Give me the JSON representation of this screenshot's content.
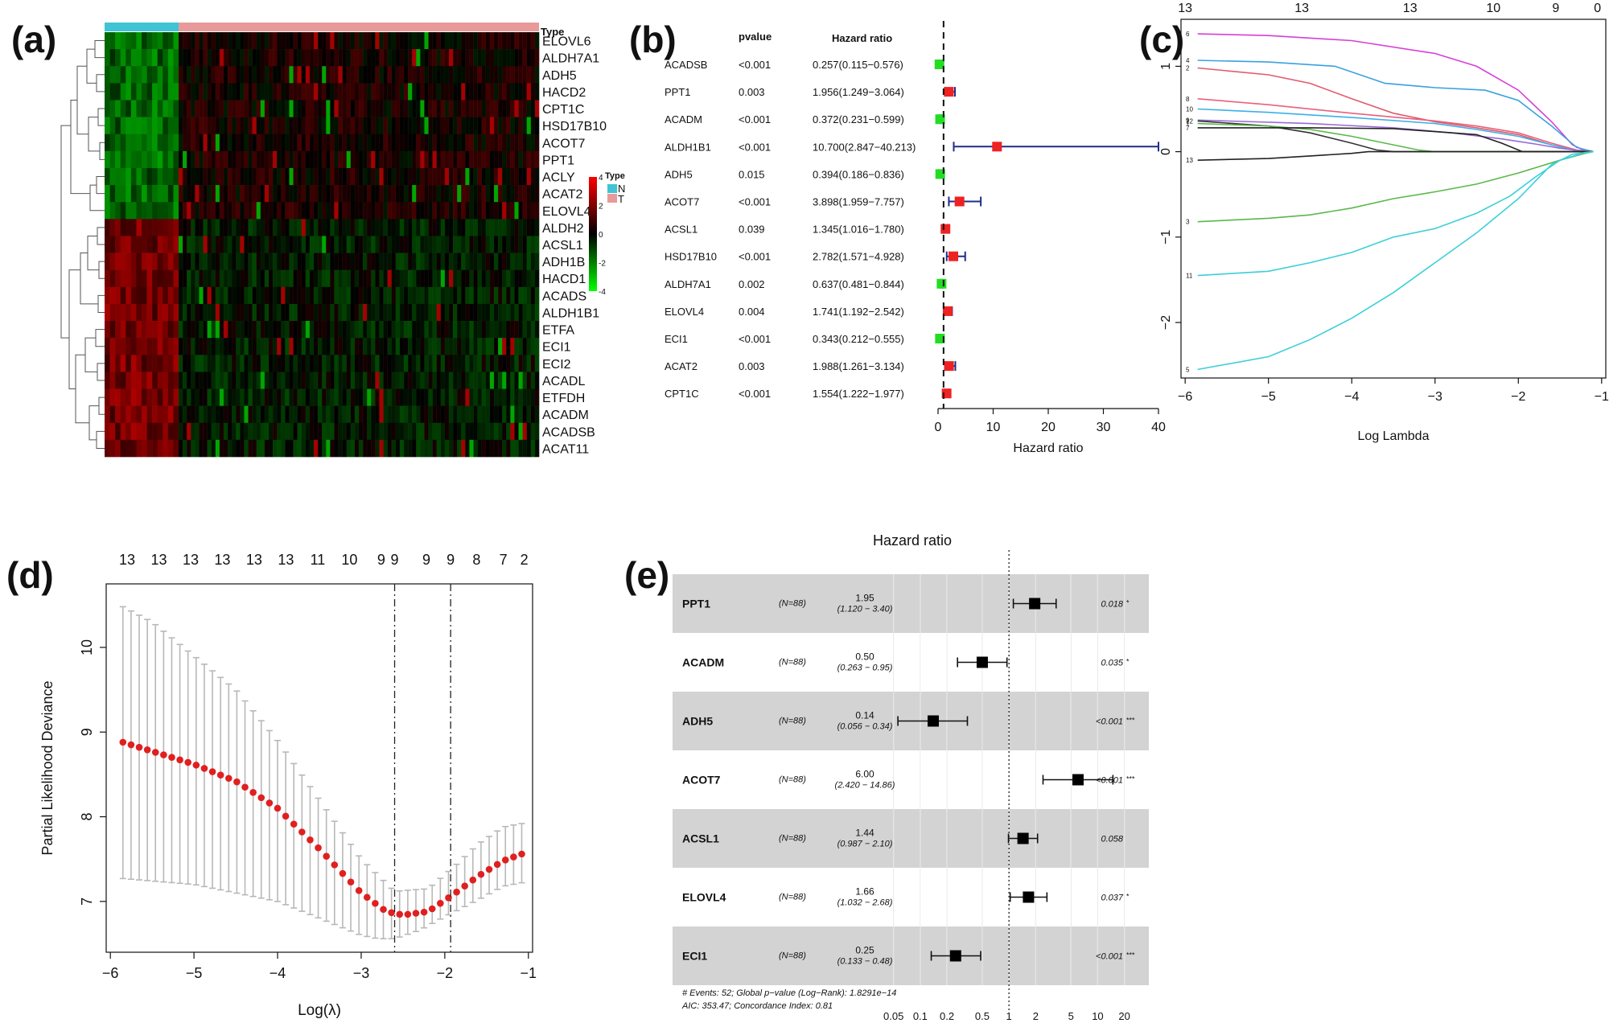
{
  "panel_labels": [
    "(a)",
    "(b)",
    "(c)",
    "(d)",
    "(e)"
  ],
  "chart_data": [
    {
      "panel": "(a)",
      "type": "heatmap",
      "annotation_title": "Type",
      "groups": [
        {
          "name": "N",
          "color": "#40c4d4"
        },
        {
          "name": "T",
          "color": "#e89a9a"
        }
      ],
      "colorbar_ticks": [
        "4",
        "2",
        "0",
        "-2",
        "-4"
      ],
      "color_low": "#00ff00",
      "color_mid": "#000000",
      "color_high": "#ff0000",
      "rows": [
        "ELOVL6",
        "ALDH7A1",
        "ADH5",
        "HACD2",
        "CPT1C",
        "HSD17B10",
        "ACOT7",
        "PPT1",
        "ACLY",
        "ACAT2",
        "ELOVL4",
        "ALDH2",
        "ACSL1",
        "ADH1B",
        "HACD1",
        "ACADS",
        "ALDH1B1",
        "ETFA",
        "ECI1",
        "ECI2",
        "ACADL",
        "ETFDH",
        "ACADM",
        "ACADSB",
        "ACAT11"
      ],
      "row_direction_in_normal": [
        "low",
        "low",
        "low",
        "low",
        "low",
        "low",
        "low",
        "low",
        "low",
        "low",
        "low",
        "high",
        "high",
        "high",
        "high",
        "high",
        "high",
        "high",
        "high",
        "high",
        "high",
        "high",
        "high",
        "high",
        "high"
      ]
    },
    {
      "panel": "(b)",
      "type": "forest",
      "col_headers": {
        "pvalue": "pvalue",
        "hr": "Hazard ratio"
      },
      "xlabel": "Hazard ratio",
      "xticks": [
        0,
        10,
        20,
        30,
        40
      ],
      "xlim": [
        0,
        40
      ],
      "reference_line": 1,
      "rows": [
        {
          "gene": "ACADSB",
          "p": "<0.001",
          "hr_text": "0.257(0.115−0.576)",
          "hr": 0.257,
          "lo": 0.115,
          "hi": 0.576
        },
        {
          "gene": "PPT1",
          "p": "0.003",
          "hr_text": "1.956(1.249−3.064)",
          "hr": 1.956,
          "lo": 1.249,
          "hi": 3.064
        },
        {
          "gene": "ACADM",
          "p": "<0.001",
          "hr_text": "0.372(0.231−0.599)",
          "hr": 0.372,
          "lo": 0.231,
          "hi": 0.599
        },
        {
          "gene": "ALDH1B1",
          "p": "<0.001",
          "hr_text": "10.700(2.847−40.213)",
          "hr": 10.7,
          "lo": 2.847,
          "hi": 40.213
        },
        {
          "gene": "ADH5",
          "p": "0.015",
          "hr_text": "0.394(0.186−0.836)",
          "hr": 0.394,
          "lo": 0.186,
          "hi": 0.836
        },
        {
          "gene": "ACOT7",
          "p": "<0.001",
          "hr_text": "3.898(1.959−7.757)",
          "hr": 3.898,
          "lo": 1.959,
          "hi": 7.757
        },
        {
          "gene": "ACSL1",
          "p": "0.039",
          "hr_text": "1.345(1.016−1.780)",
          "hr": 1.345,
          "lo": 1.016,
          "hi": 1.78
        },
        {
          "gene": "HSD17B10",
          "p": "<0.001",
          "hr_text": "2.782(1.571−4.928)",
          "hr": 2.782,
          "lo": 1.571,
          "hi": 4.928
        },
        {
          "gene": "ALDH7A1",
          "p": "0.002",
          "hr_text": "0.637(0.481−0.844)",
          "hr": 0.637,
          "lo": 0.481,
          "hi": 0.844
        },
        {
          "gene": "ELOVL4",
          "p": "0.004",
          "hr_text": "1.741(1.192−2.542)",
          "hr": 1.741,
          "lo": 1.192,
          "hi": 2.542
        },
        {
          "gene": "ECI1",
          "p": "<0.001",
          "hr_text": "0.343(0.212−0.555)",
          "hr": 0.343,
          "lo": 0.212,
          "hi": 0.555
        },
        {
          "gene": "ACAT2",
          "p": "0.003",
          "hr_text": "1.988(1.261−3.134)",
          "hr": 1.988,
          "lo": 1.261,
          "hi": 3.134
        },
        {
          "gene": "CPT1C",
          "p": "<0.001",
          "hr_text": "1.554(1.222−1.977)",
          "hr": 1.554,
          "lo": 1.222,
          "hi": 1.977
        }
      ],
      "colors": {
        "protective": "#22dd22",
        "risk": "#ee2222",
        "ci": "#1f2d8a"
      }
    },
    {
      "panel": "(c)",
      "type": "line",
      "xlabel": "Log Lambda",
      "ylabel": "",
      "xlim": [
        -6.05,
        -0.95
      ],
      "ylim": [
        -2.65,
        1.55
      ],
      "xticks": [
        -6,
        -5,
        -4,
        -3,
        -2,
        -1
      ],
      "yticks": [
        -2,
        -1,
        0,
        1
      ],
      "top_axis": {
        "x": [
          -6,
          -5,
          -4,
          -3,
          -2,
          -1.5,
          -1.05
        ],
        "labels": [
          "13",
          "13",
          "13",
          "10",
          "9",
          "0",
          ""
        ],
        "positions": [
          -6,
          -4.6,
          -3.3,
          -2.3,
          -1.55,
          -1.05
        ],
        "shown": [
          "13",
          "13",
          "13",
          "10",
          "9",
          "0"
        ]
      },
      "series": [
        {
          "name": "6",
          "color": "#d63fd6",
          "x": [
            -5.85,
            -5,
            -4,
            -3,
            -2.5,
            -2,
            -1.6,
            -1.35,
            -1.2,
            -1.1
          ],
          "y": [
            1.38,
            1.36,
            1.3,
            1.15,
            1.0,
            0.72,
            0.35,
            0.08,
            0.01,
            0
          ]
        },
        {
          "name": "4",
          "color": "#3aa0e0",
          "x": [
            -5.85,
            -5,
            -4.2,
            -3.6,
            -3,
            -2.4,
            -2,
            -1.6,
            -1.3,
            -1.1
          ],
          "y": [
            1.07,
            1.05,
            1.0,
            0.8,
            0.75,
            0.72,
            0.6,
            0.3,
            0.05,
            0
          ]
        },
        {
          "name": "2",
          "color": "#e05a6e",
          "x": [
            -5.85,
            -5,
            -4.5,
            -4,
            -3.5,
            -3,
            -2.5,
            -2,
            -1.6,
            -1.3,
            -1.1
          ],
          "y": [
            0.98,
            0.9,
            0.8,
            0.62,
            0.45,
            0.35,
            0.28,
            0.2,
            0.08,
            0.01,
            0
          ]
        },
        {
          "name": "8",
          "color": "#e8607a",
          "x": [
            -5.85,
            -5,
            -4,
            -3,
            -2.5,
            -2,
            -1.6,
            -1.3,
            -1.1
          ],
          "y": [
            0.62,
            0.55,
            0.45,
            0.36,
            0.3,
            0.22,
            0.1,
            0.02,
            0
          ]
        },
        {
          "name": "10",
          "color": "#3ab0e8",
          "x": [
            -5.85,
            -5,
            -4,
            -3,
            -2.5,
            -2,
            -1.6,
            -1.3,
            -1.1
          ],
          "y": [
            0.5,
            0.46,
            0.4,
            0.33,
            0.26,
            0.18,
            0.08,
            0.01,
            0
          ]
        },
        {
          "name": "9",
          "color": "#9a6ad6",
          "x": [
            -5.85,
            -4.5,
            -3.5,
            -2.8,
            -2.2,
            -1.8,
            -1.5,
            -1.25,
            -1.1
          ],
          "y": [
            0.37,
            0.33,
            0.28,
            0.22,
            0.15,
            0.09,
            0.04,
            0.01,
            0
          ]
        },
        {
          "name": "12",
          "color": "#333333",
          "x": [
            -5.85,
            -5,
            -4.5,
            -4,
            -3.7,
            -3.5,
            -3.3,
            -1.1
          ],
          "y": [
            0.36,
            0.3,
            0.22,
            0.1,
            0.02,
            0,
            0,
            0
          ]
        },
        {
          "name": "1",
          "color": "#5ab84a",
          "x": [
            -5.85,
            -5,
            -4.5,
            -4,
            -3.5,
            -3.2,
            -3.0,
            -1.1
          ],
          "y": [
            0.33,
            0.3,
            0.26,
            0.18,
            0.08,
            0.02,
            0,
            0
          ]
        },
        {
          "name": "7",
          "color": "#222222",
          "x": [
            -5.85,
            -4.5,
            -3.5,
            -2.5,
            -2.2,
            -1.95,
            -1.1
          ],
          "y": [
            0.28,
            0.28,
            0.27,
            0.2,
            0.1,
            0,
            0
          ]
        },
        {
          "name": "13",
          "color": "#222222",
          "x": [
            -5.85,
            -5,
            -4.5,
            -4.0,
            -3.8,
            -1.1
          ],
          "y": [
            -0.1,
            -0.08,
            -0.05,
            -0.02,
            0,
            0
          ]
        },
        {
          "name": "3",
          "color": "#5ab84a",
          "x": [
            -5.85,
            -5,
            -4.5,
            -4,
            -3.5,
            -3,
            -2.5,
            -2,
            -1.5,
            -1.2,
            -1.1
          ],
          "y": [
            -0.82,
            -0.78,
            -0.74,
            -0.66,
            -0.55,
            -0.47,
            -0.38,
            -0.25,
            -0.1,
            -0.02,
            0
          ]
        },
        {
          "name": "11",
          "color": "#3ad0d8",
          "x": [
            -5.85,
            -5,
            -4.5,
            -4,
            -3.5,
            -3,
            -2.5,
            -2.1,
            -1.8,
            -1.5,
            -1.2,
            -1.1
          ],
          "y": [
            -1.45,
            -1.4,
            -1.3,
            -1.18,
            -1.0,
            -0.9,
            -0.72,
            -0.52,
            -0.3,
            -0.1,
            -0.01,
            0
          ]
        },
        {
          "name": "5",
          "color": "#3ad0d8",
          "x": [
            -5.85,
            -5,
            -4.5,
            -4,
            -3.5,
            -3,
            -2.5,
            -2,
            -1.8,
            -1.6,
            -1.35,
            -1.1
          ],
          "y": [
            -2.55,
            -2.4,
            -2.2,
            -1.95,
            -1.65,
            -1.3,
            -0.95,
            -0.55,
            -0.35,
            -0.15,
            -0.03,
            0
          ]
        }
      ]
    },
    {
      "panel": "(d)",
      "type": "scatter",
      "xlabel": "Log(λ)",
      "ylabel": "Partial Likelihood Deviance",
      "xlim": [
        -6.05,
        -0.95
      ],
      "ylim": [
        6.4,
        10.75
      ],
      "xticks": [
        -6,
        -5,
        -4,
        -3,
        -2,
        -1
      ],
      "yticks": [
        7,
        8,
        9,
        10
      ],
      "top_labels": [
        "13",
        "13",
        "13",
        "13",
        "13",
        "13",
        "11",
        "10",
        "9",
        "9",
        "9",
        "9",
        "8",
        "7",
        "2"
      ],
      "top_label_x": [
        -5.8,
        -5.42,
        -5.04,
        -4.66,
        -4.28,
        -3.9,
        -3.52,
        -3.14,
        -2.76,
        -2.6,
        -2.22,
        -1.93,
        -1.62,
        -1.3,
        -1.05
      ],
      "vlines": [
        -2.6,
        -1.93
      ],
      "x_start": -5.85,
      "x_end": -1.08,
      "n_points": 50,
      "deviance_curve": {
        "x": [
          -5.85,
          -5.0,
          -4.5,
          -4.0,
          -3.5,
          -3.0,
          -2.7,
          -2.5,
          -2.2,
          -1.9,
          -1.6,
          -1.3,
          -1.08
        ],
        "y": [
          8.88,
          8.62,
          8.42,
          8.1,
          7.62,
          7.1,
          6.88,
          6.84,
          6.88,
          7.08,
          7.3,
          7.48,
          7.56
        ]
      },
      "upper_curve": {
        "x": [
          -5.85,
          -5.5,
          -5.0,
          -4.5,
          -4.0,
          -3.5,
          -3.0,
          -2.6,
          -2.2,
          -1.9,
          -1.6,
          -1.3,
          -1.08
        ],
        "y": [
          10.48,
          10.3,
          9.9,
          9.5,
          8.9,
          8.2,
          7.5,
          7.12,
          7.15,
          7.4,
          7.68,
          7.88,
          7.92
        ]
      },
      "lower_curve": {
        "x": [
          -5.85,
          -5.0,
          -4.0,
          -3.5,
          -3.0,
          -2.8,
          -2.6,
          -2.3,
          -2.0,
          -1.6,
          -1.3,
          -1.08
        ],
        "y": [
          7.27,
          7.2,
          7.0,
          6.8,
          6.6,
          6.56,
          6.56,
          6.66,
          6.82,
          7.02,
          7.18,
          7.22
        ]
      },
      "point_color": "#e02020",
      "bar_color": "#b8b8b8"
    },
    {
      "panel": "(e)",
      "type": "forest",
      "title": "Hazard ratio",
      "xscale": "log",
      "xticks": [
        0.05,
        0.1,
        0.2,
        0.5,
        1,
        2,
        5,
        10,
        20
      ],
      "xtick_labels": [
        "0.05",
        "0.1",
        "0.2",
        "0.5",
        "1",
        "2",
        "5",
        "10",
        "20"
      ],
      "xlim": [
        0.04,
        27
      ],
      "reference_line": 1,
      "rows": [
        {
          "gene": "PPT1",
          "n": "(N=88)",
          "hr_text": "1.95",
          "ci_text": "(1.120 − 3.40)",
          "p": "0.018",
          "stars": "*",
          "hr": 1.95,
          "lo": 1.12,
          "hi": 3.4
        },
        {
          "gene": "ACADM",
          "n": "(N=88)",
          "hr_text": "0.50",
          "ci_text": "(0.263 − 0.95)",
          "p": "0.035",
          "stars": "*",
          "hr": 0.5,
          "lo": 0.263,
          "hi": 0.95
        },
        {
          "gene": "ADH5",
          "n": "(N=88)",
          "hr_text": "0.14",
          "ci_text": "(0.056 − 0.34)",
          "p": "<0.001",
          "stars": "***",
          "hr": 0.14,
          "lo": 0.056,
          "hi": 0.34
        },
        {
          "gene": "ACOT7",
          "n": "(N=88)",
          "hr_text": "6.00",
          "ci_text": "(2.420 − 14.86)",
          "p": "<0.001",
          "stars": "***",
          "hr": 6.0,
          "lo": 2.42,
          "hi": 14.86
        },
        {
          "gene": "ACSL1",
          "n": "(N=88)",
          "hr_text": "1.44",
          "ci_text": "(0.987 − 2.10)",
          "p": "0.058",
          "stars": "",
          "hr": 1.44,
          "lo": 0.987,
          "hi": 2.1
        },
        {
          "gene": "ELOVL4",
          "n": "(N=88)",
          "hr_text": "1.66",
          "ci_text": "(1.032 − 2.68)",
          "p": "0.037",
          "stars": "*",
          "hr": 1.66,
          "lo": 1.032,
          "hi": 2.68
        },
        {
          "gene": "ECI1",
          "n": "(N=88)",
          "hr_text": "0.25",
          "ci_text": "(0.133 − 0.48)",
          "p": "<0.001",
          "stars": "***",
          "hr": 0.25,
          "lo": 0.133,
          "hi": 0.48
        }
      ],
      "footnote_1": "# Events: 52; Global p−value (Log−Rank): 1.8291e−14",
      "footnote_2": "AIC: 353.47; Concordance Index: 0.81",
      "shade_color": "#d3d3d3"
    }
  ]
}
